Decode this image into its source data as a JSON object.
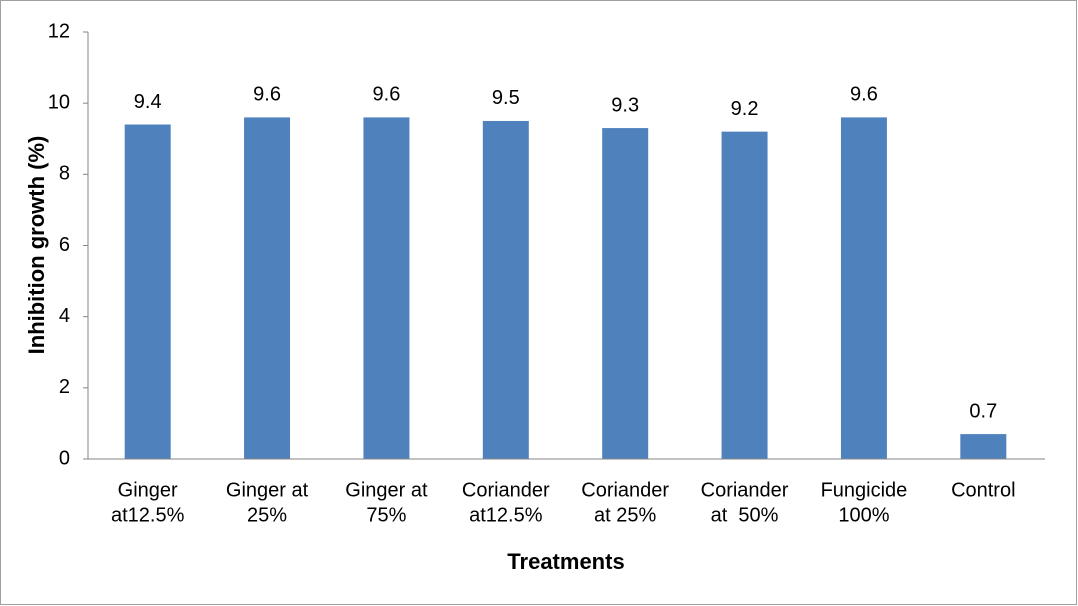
{
  "chart_data": {
    "type": "bar",
    "ylabel": "Inhibition growth (%)",
    "xlabel": "Treatments",
    "categories": [
      [
        "Ginger",
        "at12.5%"
      ],
      [
        "Ginger at",
        "25%"
      ],
      [
        "Ginger at",
        "75%"
      ],
      [
        "Coriander",
        "at12.5%"
      ],
      [
        "Coriander",
        "at 25%"
      ],
      [
        "Coriander",
        "at  50%"
      ],
      [
        "Fungicide",
        "100%"
      ],
      [
        "Control"
      ]
    ],
    "values": [
      9.4,
      9.6,
      9.6,
      9.5,
      9.3,
      9.2,
      9.6,
      0.7
    ],
    "color": "#4f81bd",
    "ylim": [
      0,
      12
    ],
    "yticks": [
      0,
      2,
      4,
      6,
      8,
      10,
      12
    ],
    "grid": false
  }
}
